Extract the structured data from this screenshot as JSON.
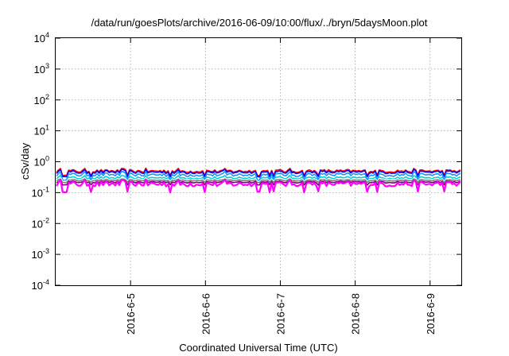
{
  "chart_data": {
    "type": "line",
    "title": "/data/run/goesPlots/archive/2016-06-09/10:00/flux/../bryn/5daysMoon.plot",
    "xlabel": "Coordinated Universal Time (UTC)",
    "ylabel": "cSv/day",
    "y_scale": "log",
    "ylim": [
      0.0001,
      10000
    ],
    "y_ticks": [
      {
        "base": "10",
        "exp": "-4",
        "value": 0.0001
      },
      {
        "base": "10",
        "exp": "-3",
        "value": 0.001
      },
      {
        "base": "10",
        "exp": "-2",
        "value": 0.01
      },
      {
        "base": "10",
        "exp": "-1",
        "value": 0.1
      },
      {
        "base": "10",
        "exp": "0",
        "value": 1
      },
      {
        "base": "10",
        "exp": "1",
        "value": 10
      },
      {
        "base": "10",
        "exp": "2",
        "value": 100
      },
      {
        "base": "10",
        "exp": "3",
        "value": 1000
      },
      {
        "base": "10",
        "exp": "4",
        "value": 10000
      }
    ],
    "x_type": "time",
    "xlim": [
      "2016-06-04T00:00",
      "2016-06-09T10:00"
    ],
    "x_ticks": [
      {
        "label": "2016-6-5",
        "value": "2016-06-05T00:00"
      },
      {
        "label": "2016-6-6",
        "value": "2016-06-06T00:00"
      },
      {
        "label": "2016-6-7",
        "value": "2016-06-07T00:00"
      },
      {
        "label": "2016-6-8",
        "value": "2016-06-08T00:00"
      },
      {
        "label": "2016-6-9",
        "value": "2016-06-09T00:00"
      }
    ],
    "grid": true,
    "legend": "none",
    "series": [
      {
        "color": "#ff0000",
        "level": 0.5,
        "spread": 0.12
      },
      {
        "color": "#0000ff",
        "level": 0.46,
        "spread": 0.12
      },
      {
        "color": "#1e90ff",
        "level": 0.38,
        "spread": 0.14
      },
      {
        "color": "#00d0d0",
        "level": 0.3,
        "spread": 0.1
      },
      {
        "color": "#ffffff",
        "level": 0.27,
        "spread": 0.06
      },
      {
        "color": "#808080",
        "level": 0.25,
        "spread": 0.06
      },
      {
        "color": "#800080",
        "level": 0.22,
        "spread": 0.08
      },
      {
        "color": "#ff00ff",
        "level": 0.19,
        "spread": 0.2
      }
    ]
  }
}
